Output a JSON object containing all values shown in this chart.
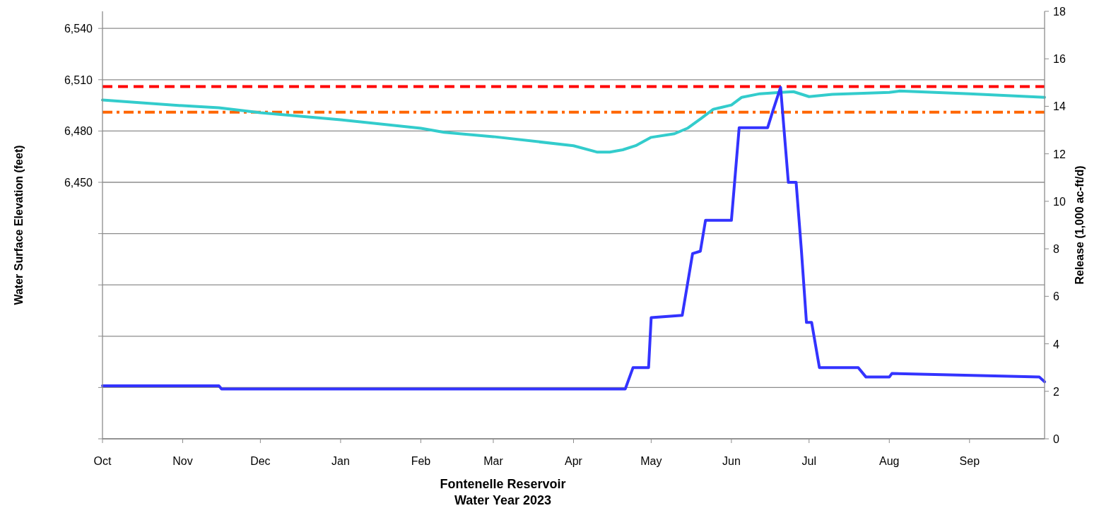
{
  "chart_data": {
    "type": "line",
    "title": "Fontenelle Reservoir",
    "subtitle": "Water Year 2023",
    "ylabel": "Water Surface Elevation (feet)",
    "y2label": "Release (1,000 ac-ft/d)",
    "xlim": [
      "2022-10-01",
      "2023-09-30"
    ],
    "xticks": [
      {
        "value": "2022-10-01",
        "label": "Oct"
      },
      {
        "value": "2022-11-01",
        "label": "Nov"
      },
      {
        "value": "2022-12-01",
        "label": "Dec"
      },
      {
        "value": "2023-01-01",
        "label": "Jan"
      },
      {
        "value": "2023-02-01",
        "label": "Feb"
      },
      {
        "value": "2023-03-01",
        "label": "Mar"
      },
      {
        "value": "2023-04-01",
        "label": "Apr"
      },
      {
        "value": "2023-05-01",
        "label": "May"
      },
      {
        "value": "2023-06-01",
        "label": "Jun"
      },
      {
        "value": "2023-07-01",
        "label": "Jul"
      },
      {
        "value": "2023-08-01",
        "label": "Aug"
      },
      {
        "value": "2023-09-01",
        "label": "Sep"
      }
    ],
    "ylim": [
      6300,
      6550
    ],
    "yticks": [
      {
        "value": 6300,
        "label": null
      },
      {
        "value": 6330,
        "label": null
      },
      {
        "value": 6360,
        "label": null
      },
      {
        "value": 6390,
        "label": null
      },
      {
        "value": 6420,
        "label": null
      },
      {
        "value": 6450,
        "label": "6,450"
      },
      {
        "value": 6480,
        "label": "6,480"
      },
      {
        "value": 6510,
        "label": "6,510"
      },
      {
        "value": 6540,
        "label": "6,540"
      }
    ],
    "y2lim": [
      0,
      18
    ],
    "y2ticks": [
      0,
      2,
      4,
      6,
      8,
      10,
      12,
      14,
      16,
      18
    ],
    "grid": "y",
    "marker": "none",
    "line_style": "solid",
    "ref_lines": [
      {
        "axis": "y",
        "value": 6506,
        "color": "#ff0000",
        "line_style": "dashed"
      },
      {
        "axis": "y",
        "value": 6491,
        "color": "#ff6600",
        "line_style": "dashdot"
      }
    ],
    "series": [
      {
        "color": "#33cccc",
        "x": [
          "2022-10-01",
          "2022-11-01",
          "2022-11-15",
          "2022-12-01",
          "2023-01-01",
          "2023-02-01",
          "2023-02-10",
          "2023-03-01",
          "2023-04-01",
          "2023-04-10",
          "2023-04-15",
          "2023-04-20",
          "2023-04-25",
          "2023-05-01",
          "2023-05-10",
          "2023-05-15",
          "2023-05-20",
          "2023-05-25",
          "2023-06-01",
          "2023-06-05",
          "2023-06-12",
          "2023-06-20",
          "2023-06-25",
          "2023-07-01",
          "2023-07-10",
          "2023-08-01",
          "2023-08-05",
          "2023-09-01",
          "2023-09-30"
        ],
        "values": [
          6498.1,
          6494.8,
          6493.6,
          6490.7,
          6486.6,
          6481.6,
          6479.2,
          6476.7,
          6471.4,
          6467.7,
          6467.7,
          6469,
          6471.4,
          6476.3,
          6478.4,
          6481.6,
          6487,
          6492.7,
          6495.2,
          6499.7,
          6501.8,
          6502.6,
          6503,
          6500.1,
          6501.4,
          6502.6,
          6503.4,
          6501.8,
          6499.7
        ]
      },
      {
        "color": "#3333ff",
        "axis": "y2",
        "x": [
          "2022-10-01",
          "2022-11-15",
          "2022-11-16",
          "2023-04-21",
          "2023-04-24",
          "2023-04-30",
          "2023-05-01",
          "2023-05-13",
          "2023-05-17",
          "2023-05-20",
          "2023-05-22",
          "2023-06-01",
          "2023-06-04",
          "2023-06-15",
          "2023-06-17",
          "2023-06-20",
          "2023-06-23",
          "2023-06-26",
          "2023-06-28",
          "2023-06-30",
          "2023-07-02",
          "2023-07-05",
          "2023-07-20",
          "2023-07-23",
          "2023-08-01",
          "2023-08-02",
          "2023-09-28",
          "2023-09-30"
        ],
        "values": [
          2.23,
          2.23,
          2.1,
          2.1,
          3.0,
          3.0,
          5.1,
          5.2,
          7.8,
          7.9,
          9.2,
          9.2,
          13.1,
          13.1,
          13.8,
          14.8,
          10.8,
          10.8,
          8.0,
          4.9,
          4.9,
          3.0,
          3.0,
          2.6,
          2.6,
          2.75,
          2.6,
          2.4
        ]
      }
    ]
  }
}
